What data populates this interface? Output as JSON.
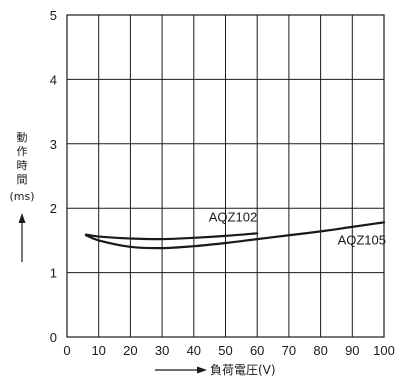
{
  "chart_data": {
    "type": "line",
    "title": "",
    "ylabel": "動作時間",
    "yunit": "(ms)",
    "xlabel": "負荷電圧(V)",
    "xlim": [
      0,
      100
    ],
    "ylim": [
      0,
      5
    ],
    "x_ticks": [
      0,
      10,
      20,
      30,
      40,
      50,
      60,
      70,
      80,
      90,
      100
    ],
    "y_ticks": [
      0,
      1,
      2,
      3,
      4,
      5
    ],
    "grid": true,
    "series": [
      {
        "name": "AQZ102",
        "x": [
          6,
          10,
          20,
          30,
          40,
          50,
          60
        ],
        "y": [
          1.59,
          1.56,
          1.53,
          1.52,
          1.54,
          1.57,
          1.61
        ]
      },
      {
        "name": "AQZ105",
        "x": [
          6,
          10,
          20,
          30,
          40,
          50,
          60,
          70,
          80,
          90,
          100
        ],
        "y": [
          1.58,
          1.5,
          1.4,
          1.38,
          1.41,
          1.46,
          1.52,
          1.58,
          1.64,
          1.71,
          1.78
        ]
      }
    ]
  }
}
